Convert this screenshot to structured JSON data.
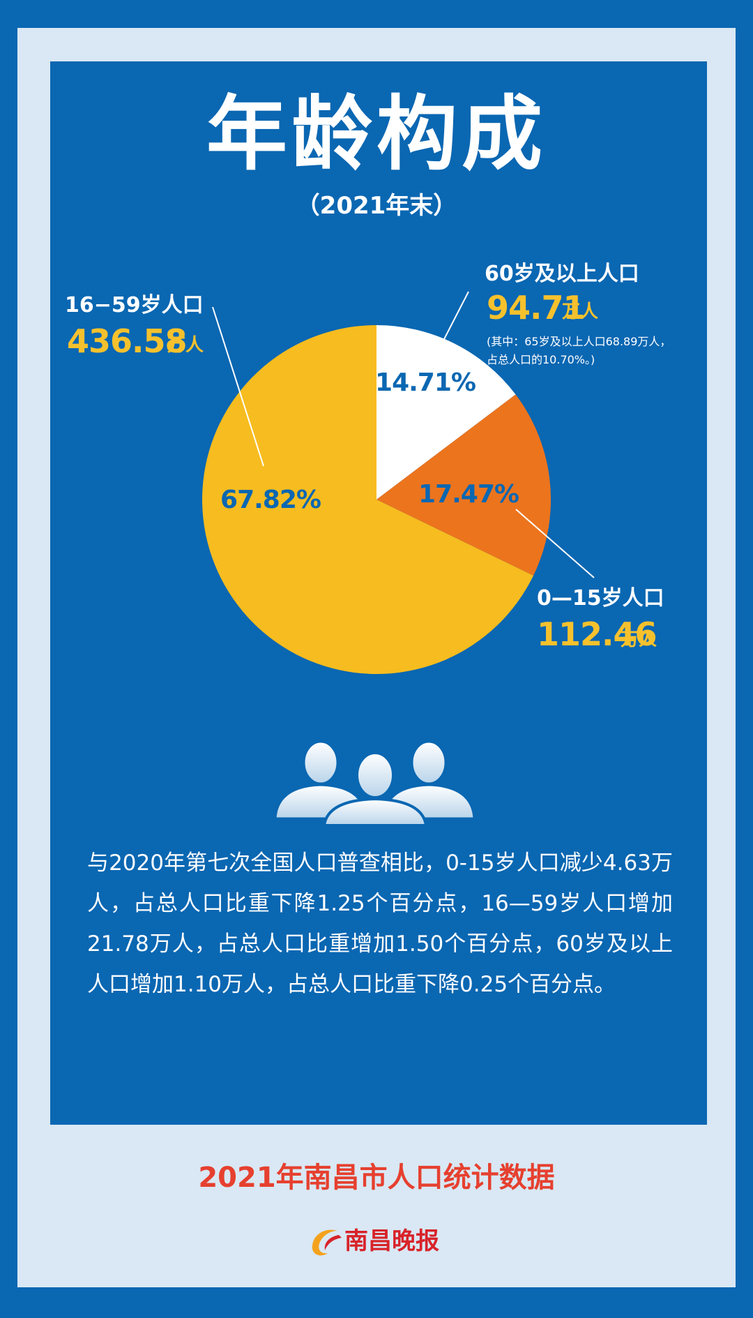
{
  "header": {
    "title": "年龄构成",
    "subtitle": "（2021年末）"
  },
  "chart_data": {
    "type": "pie",
    "title": "年龄构成",
    "subtitle": "（2021年末）",
    "slices": [
      {
        "name": "60岁及以上人口",
        "value": 94.71,
        "unit": "万人",
        "percent": 14.71,
        "percent_label": "14.71%",
        "value_label": "94.71",
        "color": "#ffffff"
      },
      {
        "name": "0—15岁人口",
        "value": 112.46,
        "unit": "万人",
        "percent": 17.47,
        "percent_label": "17.47%",
        "value_label": "112.46",
        "color": "#ec741d"
      },
      {
        "name": "16−59岁人口",
        "value": 436.58,
        "unit": "万人",
        "percent": 67.82,
        "percent_label": "67.82%",
        "value_label": "436.58",
        "color": "#f7bc1f"
      }
    ],
    "annotation": {
      "line1": "(其中：65岁及以上人口68.89万人，",
      "line2": "占总人口的10.70%。)"
    },
    "percent_label_color": "#0a67b2"
  },
  "body": {
    "text": "与2020年第七次全国人口普查相比，0-15岁人口减少4.63万人，占总人口比重下降1.25个百分点，16—59岁人口增加21.78万人，占总人口比重增加1.50个百分点，60岁及以上人口增加1.10万人，占总人口比重下降0.25个百分点。"
  },
  "footer": {
    "title": "2021年南昌市人口统计数据",
    "logo_text": "南昌晚报"
  },
  "colors": {
    "background": "#0a67b2",
    "frame": "#d9e8f4",
    "accent_yellow": "#f6c12d",
    "footer_red": "#e6402f"
  }
}
